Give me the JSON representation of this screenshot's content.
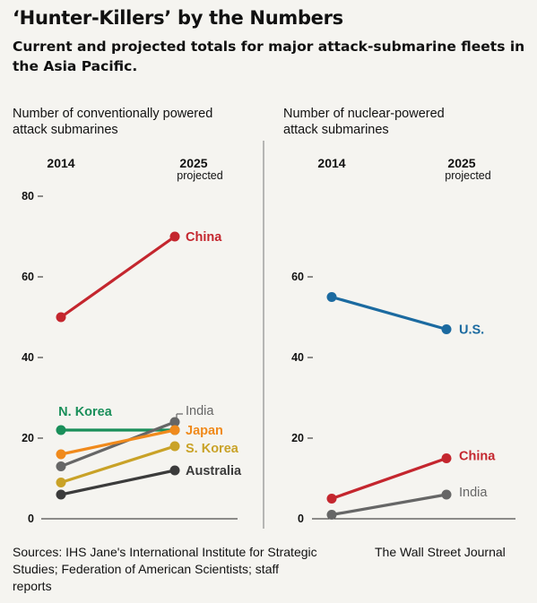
{
  "title": "‘Hunter-Killers’ by the Numbers",
  "subtitle": "Current and projected totals for major attack-submarine fleets in the Asia Pacific.",
  "footer": {
    "sources": "Sources: IHS Jane's International Institute for Strategic Studies; Federation of American Scientists; staff reports",
    "credit": "The Wall Street Journal"
  },
  "chart_data": [
    {
      "type": "line",
      "ylabel": "Number of conventionally powered attack submarines",
      "categories": [
        "2014",
        "2025"
      ],
      "category_sublabels": [
        "",
        "projected"
      ],
      "ylim": [
        0,
        80
      ],
      "yticks": [
        0,
        20,
        40,
        60,
        80
      ],
      "grid": false,
      "series": [
        {
          "name": "China",
          "values": [
            50,
            70
          ],
          "color": "#c4262e"
        },
        {
          "name": "N. Korea",
          "values": [
            22,
            22
          ],
          "color": "#1a8f5a"
        },
        {
          "name": "India",
          "values": [
            13,
            24
          ],
          "color": "#666666"
        },
        {
          "name": "Japan",
          "values": [
            16,
            22
          ],
          "color": "#f08a1c"
        },
        {
          "name": "S. Korea",
          "values": [
            9,
            18
          ],
          "color": "#c9a227"
        },
        {
          "name": "Australia",
          "values": [
            6,
            12
          ],
          "color": "#3b3b3b"
        }
      ]
    },
    {
      "type": "line",
      "ylabel": "Number of nuclear-powered attack submarines",
      "categories": [
        "2014",
        "2025"
      ],
      "category_sublabels": [
        "",
        "projected"
      ],
      "ylim": [
        0,
        60
      ],
      "yticks": [
        0,
        20,
        40,
        60
      ],
      "grid": false,
      "series": [
        {
          "name": "U.S.",
          "values": [
            55,
            47
          ],
          "color": "#1b6aa0"
        },
        {
          "name": "China",
          "values": [
            5,
            15
          ],
          "color": "#c4262e"
        },
        {
          "name": "India",
          "values": [
            1,
            6
          ],
          "color": "#666666"
        }
      ]
    }
  ]
}
